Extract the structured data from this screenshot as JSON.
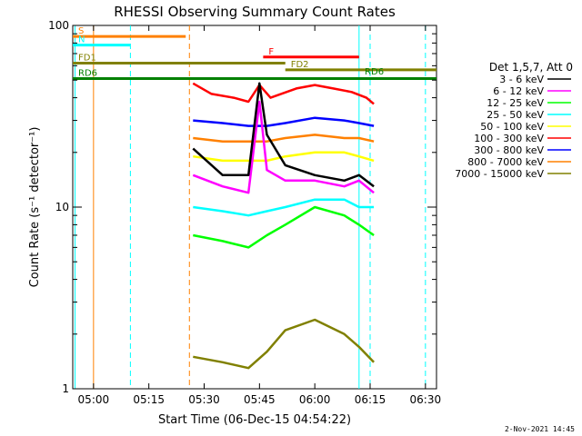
{
  "chart_data": {
    "type": "line",
    "title": "RHESSI Observing Summary Count Rates",
    "xlabel": "Start Time (06-Dec-15 04:54:22)",
    "ylabel": "Count Rate (s⁻¹ detector⁻¹)",
    "y_scale": "log",
    "ylim": [
      1,
      100
    ],
    "xlim": [
      "04:54:22",
      "06:33:00"
    ],
    "x_ticks": [
      "05:00",
      "05:15",
      "05:30",
      "05:45",
      "06:00",
      "06:15",
      "06:30"
    ],
    "y_ticks": [
      "1",
      "10",
      "100"
    ],
    "legend_header": "Det 1,5,7, Att 0",
    "legend_position": "right",
    "series": [
      {
        "name": "3 - 6 keV",
        "color": "#000000",
        "x": [
          "05:27",
          "05:35",
          "05:42",
          "05:45",
          "05:47",
          "05:52",
          "06:00",
          "06:08",
          "06:12",
          "06:16"
        ],
        "values": [
          21,
          15,
          15,
          48,
          25,
          17,
          15,
          14,
          15,
          13
        ]
      },
      {
        "name": "6 - 12 keV",
        "color": "#ff00ff",
        "x": [
          "05:27",
          "05:35",
          "05:42",
          "05:45",
          "05:47",
          "05:52",
          "06:00",
          "06:08",
          "06:12",
          "06:16"
        ],
        "values": [
          15,
          13,
          12,
          38,
          16,
          14,
          14,
          13,
          14,
          12
        ]
      },
      {
        "name": "12 - 25 keV",
        "color": "#00ff00",
        "x": [
          "05:27",
          "05:35",
          "05:42",
          "05:47",
          "05:52",
          "06:00",
          "06:08",
          "06:12",
          "06:16"
        ],
        "values": [
          7,
          6.5,
          6,
          7,
          8,
          10,
          9,
          8,
          7
        ]
      },
      {
        "name": "25 - 50 keV",
        "color": "#00ffff",
        "x": [
          "05:27",
          "05:35",
          "05:42",
          "05:47",
          "05:52",
          "06:00",
          "06:08",
          "06:12",
          "06:16"
        ],
        "values": [
          10,
          9.5,
          9,
          9.5,
          10,
          11,
          11,
          10,
          10
        ]
      },
      {
        "name": "50 - 100 keV",
        "color": "#ffff00",
        "x": [
          "05:27",
          "05:35",
          "05:42",
          "05:47",
          "05:52",
          "06:00",
          "06:08",
          "06:12",
          "06:16"
        ],
        "values": [
          19,
          18,
          18,
          18,
          19,
          20,
          20,
          19,
          18
        ]
      },
      {
        "name": "100 - 300 keV",
        "color": "#ff0000",
        "x": [
          "05:27",
          "05:32",
          "05:38",
          "05:42",
          "05:45",
          "05:48",
          "05:55",
          "06:00",
          "06:05",
          "06:10",
          "06:14",
          "06:16"
        ],
        "values": [
          48,
          42,
          40,
          38,
          47,
          40,
          45,
          47,
          45,
          43,
          40,
          37
        ]
      },
      {
        "name": "300 - 800 keV",
        "color": "#0000ff",
        "x": [
          "05:27",
          "05:35",
          "05:42",
          "05:47",
          "05:52",
          "06:00",
          "06:08",
          "06:12",
          "06:16"
        ],
        "values": [
          30,
          29,
          28,
          28,
          29,
          31,
          30,
          29,
          28
        ]
      },
      {
        "name": "800 - 7000 keV",
        "color": "#ff8000",
        "x": [
          "05:27",
          "05:35",
          "05:42",
          "05:47",
          "05:52",
          "06:00",
          "06:08",
          "06:12",
          "06:16"
        ],
        "values": [
          24,
          23,
          23,
          23,
          24,
          25,
          24,
          24,
          23
        ]
      },
      {
        "name": "7000 - 15000 keV",
        "color": "#808000",
        "x": [
          "05:27",
          "05:35",
          "05:42",
          "05:47",
          "05:52",
          "06:00",
          "06:08",
          "06:12",
          "06:16"
        ],
        "values": [
          1.5,
          1.4,
          1.3,
          1.6,
          2.1,
          2.4,
          2.0,
          1.7,
          1.4
        ]
      }
    ],
    "flags": [
      {
        "label": "S",
        "color": "#ff8000",
        "x_start": "04:54:22",
        "x_end": "05:25",
        "level": 87
      },
      {
        "label": "N",
        "color": "#00ffff",
        "x_start": "04:54:22",
        "x_end": "05:10",
        "level": 78
      },
      {
        "label": "F",
        "color": "#ff0000",
        "x_start": "05:46",
        "x_end": "06:12",
        "level": 67
      },
      {
        "label": "FD1",
        "color": "#808000",
        "x_start": "04:54:22",
        "x_end": "05:52",
        "level": 62
      },
      {
        "label": "FD2",
        "color": "#808000",
        "x_start": "05:52",
        "x_end": "06:33",
        "level": 57
      },
      {
        "label": "RD6",
        "color": "#008000",
        "x_start": "04:54:22",
        "x_end": "06:33",
        "level": 51
      }
    ],
    "extra_labels": [
      {
        "label": "RD6",
        "color": "#008000",
        "x": "06:16",
        "level": 52
      }
    ],
    "vertical_markers": [
      {
        "x": "04:55",
        "color": "#00ffff",
        "style": "solid"
      },
      {
        "x": "05:00",
        "color": "#ff8000",
        "style": "solid"
      },
      {
        "x": "05:10",
        "color": "#00ffff",
        "style": "dashed"
      },
      {
        "x": "05:26",
        "color": "#ff8000",
        "style": "dashed"
      },
      {
        "x": "06:12",
        "color": "#00ffff",
        "style": "solid"
      },
      {
        "x": "06:15",
        "color": "#00ffff",
        "style": "dashed"
      },
      {
        "x": "06:30",
        "color": "#00ffff",
        "style": "dashed"
      }
    ],
    "grid": false
  },
  "footer_date": "2-Nov-2021 14:45"
}
